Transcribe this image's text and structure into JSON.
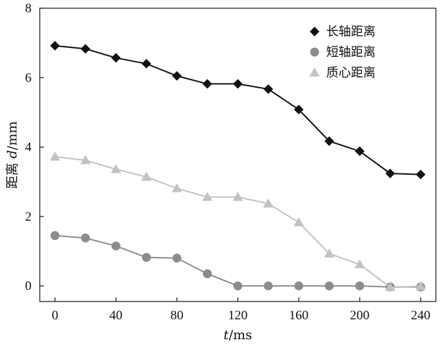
{
  "chart_data": {
    "type": "line",
    "x": [
      0,
      20,
      40,
      60,
      80,
      100,
      120,
      140,
      160,
      180,
      200,
      220,
      240
    ],
    "series": [
      {
        "name": "长轴距离",
        "marker": "diamond",
        "color": "#111111",
        "values": [
          6.92,
          6.83,
          6.57,
          6.4,
          6.05,
          5.82,
          5.82,
          5.67,
          5.08,
          4.17,
          3.88,
          3.24,
          3.21
        ]
      },
      {
        "name": "短轴距离",
        "marker": "circle",
        "color": "#8c8c8c",
        "values": [
          1.45,
          1.38,
          1.15,
          0.82,
          0.8,
          0.35,
          0.0,
          0.0,
          0.0,
          0.0,
          0.0,
          -0.03,
          -0.03
        ]
      },
      {
        "name": "质心距离",
        "marker": "triangle",
        "color": "#c2c2c2",
        "values": [
          3.72,
          3.62,
          3.36,
          3.14,
          2.81,
          2.56,
          2.56,
          2.37,
          1.83,
          0.93,
          0.62,
          -0.04,
          -0.01
        ]
      }
    ],
    "xticks": [
      0,
      40,
      80,
      120,
      160,
      200,
      240
    ],
    "yticks": [
      0,
      2,
      4,
      6,
      8
    ],
    "xlim": [
      -10,
      250
    ],
    "ylim": [
      -0.45,
      8
    ],
    "xlabel": {
      "italic": "t",
      "rest": "/ms"
    },
    "ylabel": {
      "pre": "距离 ",
      "italic": "d",
      "rest": "/mm"
    },
    "grid": false,
    "legend_position": "top-right"
  }
}
